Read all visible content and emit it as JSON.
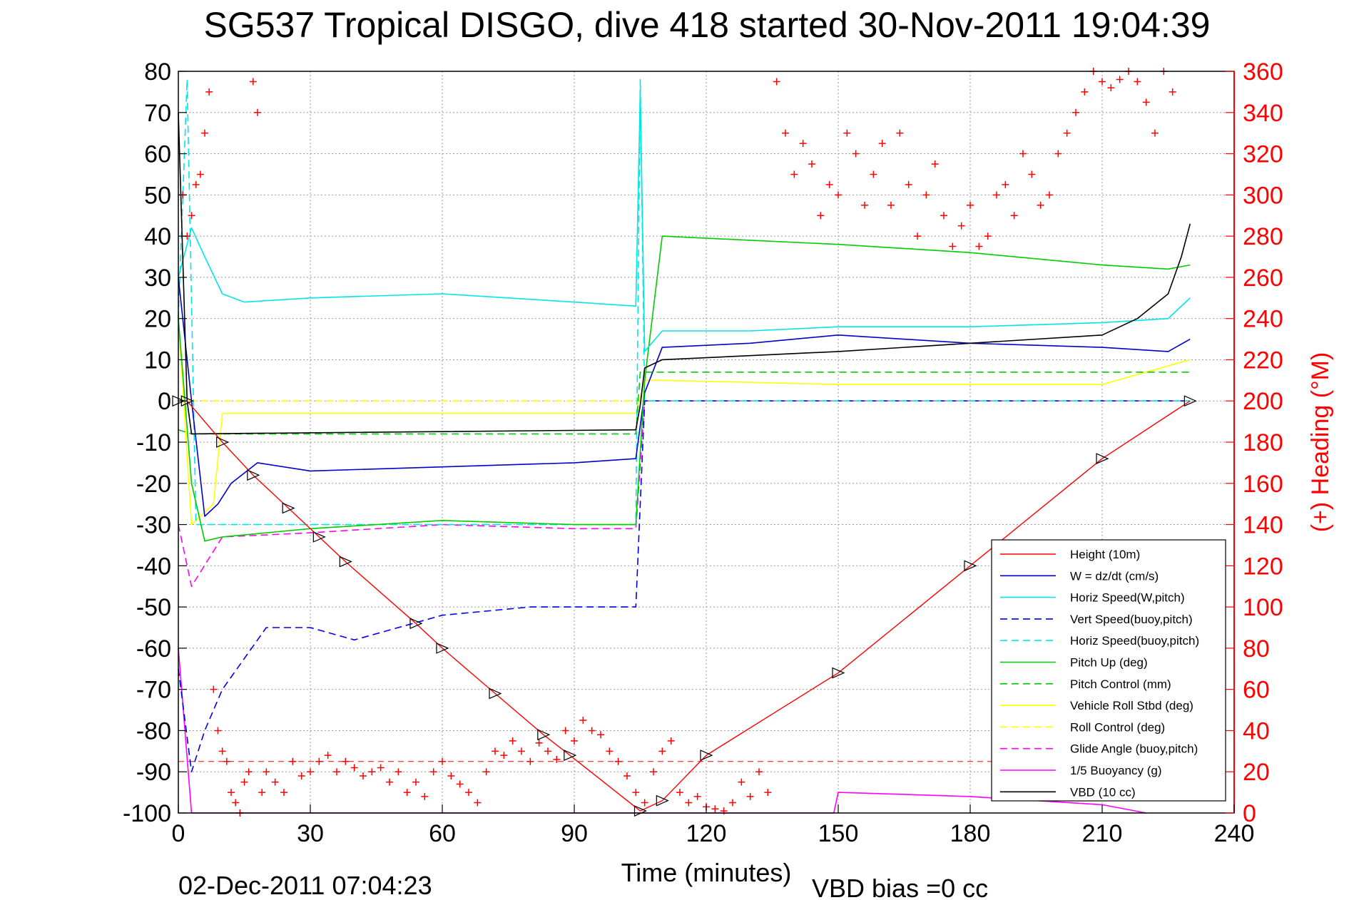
{
  "chart_data": {
    "type": "line",
    "title": "SG537 Tropical DISGO, dive 418 started 30-Nov-2011 19:04:39",
    "xlabel": "Time (minutes)",
    "ylabel_right": "(+) Heading (°M)",
    "footer_left": "02-Dec-2011 07:04:23",
    "footer_right": "VBD bias =0 cc",
    "xlim": [
      0,
      240
    ],
    "ylim": [
      -100,
      80
    ],
    "ylim_right": [
      0,
      360
    ],
    "xticks": [
      0,
      30,
      60,
      90,
      120,
      150,
      180,
      210,
      240
    ],
    "yticks": [
      80,
      70,
      60,
      50,
      40,
      30,
      20,
      10,
      0,
      -10,
      -20,
      -30,
      -40,
      -50,
      -60,
      -70,
      -80,
      -90,
      -100
    ],
    "yticks_right": [
      360,
      340,
      320,
      300,
      280,
      260,
      240,
      220,
      200,
      180,
      160,
      140,
      120,
      100,
      80,
      60,
      40,
      20,
      0
    ],
    "grid": true,
    "legend_position": "bottom-right",
    "series": [
      {
        "name": "Height (10m)",
        "color": "#ff0000",
        "style": "solid",
        "x": [
          0,
          2,
          10,
          17,
          25,
          32,
          38,
          54,
          60,
          72,
          83,
          89,
          105,
          110,
          120,
          150,
          180,
          210,
          230
        ],
        "y": [
          0,
          0,
          -10,
          -18,
          -26,
          -33,
          -39,
          -54,
          -60,
          -71,
          -81,
          -86,
          -99.5,
          -97,
          -86,
          -66,
          -40,
          -14,
          0
        ]
      },
      {
        "name": "W = dz/dt (cm/s)",
        "color": "#0000cc",
        "style": "solid",
        "x": [
          0,
          3,
          6,
          9,
          12,
          18,
          30,
          60,
          90,
          104,
          106,
          110,
          130,
          150,
          180,
          210,
          225,
          230
        ],
        "y": [
          30,
          0,
          -28,
          -25,
          -20,
          -15,
          -17,
          -16,
          -15,
          -14,
          2,
          13,
          14,
          16,
          14,
          13,
          12,
          15
        ]
      },
      {
        "name": "Horiz Speed(W,pitch)",
        "color": "#00e5e5",
        "style": "solid",
        "x": [
          0,
          3,
          6,
          10,
          15,
          30,
          60,
          90,
          104,
          105,
          106,
          110,
          130,
          150,
          180,
          210,
          225,
          230
        ],
        "y": [
          30,
          42,
          35,
          26,
          24,
          25,
          26,
          24,
          23,
          75,
          12,
          17,
          17,
          18,
          18,
          19,
          20,
          25
        ]
      },
      {
        "name": "Vert Speed(buoy,pitch)",
        "color": "#0000ee",
        "style": "dashed",
        "x": [
          0,
          3,
          6,
          10,
          20,
          30,
          40,
          60,
          80,
          90,
          104,
          106,
          110,
          150,
          180,
          230
        ],
        "y": [
          -65,
          -90,
          -80,
          -70,
          -55,
          -55,
          -58,
          -52,
          -50,
          -50,
          -50,
          0,
          0,
          0,
          0,
          0
        ]
      },
      {
        "name": "Horiz Speed(buoy,pitch)",
        "color": "#00e5e5",
        "style": "dashed",
        "x": [
          0,
          2,
          4,
          104,
          105,
          106,
          230
        ],
        "y": [
          20,
          78,
          -30,
          -30,
          78,
          0,
          0
        ]
      },
      {
        "name": "Pitch Up (deg)",
        "color": "#00cc00",
        "style": "solid",
        "x": [
          0,
          3,
          6,
          10,
          30,
          60,
          90,
          104,
          106,
          110,
          130,
          150,
          180,
          210,
          225,
          230
        ],
        "y": [
          20,
          -20,
          -34,
          -33,
          -31,
          -29,
          -30,
          -30,
          5,
          40,
          39,
          38,
          36,
          33,
          32,
          33
        ]
      },
      {
        "name": "Pitch Control (mm)",
        "color": "#00cc00",
        "style": "dashed",
        "x": [
          0,
          3,
          104,
          105,
          230
        ],
        "y": [
          -7,
          -8,
          -8,
          7,
          7
        ]
      },
      {
        "name": "Vehicle Roll Stbd (deg)",
        "color": "#ffff00",
        "style": "solid",
        "x": [
          0,
          3,
          8,
          10,
          30,
          60,
          90,
          104,
          106,
          110,
          150,
          180,
          210,
          230
        ],
        "y": [
          20,
          -30,
          -25,
          -3,
          -3,
          -3,
          -3,
          -3,
          5,
          5,
          4,
          4,
          4,
          10
        ]
      },
      {
        "name": "Roll Control (deg)",
        "color": "#ffff00",
        "style": "dashed",
        "x": [
          0,
          104,
          230
        ],
        "y": [
          0,
          0,
          0
        ]
      },
      {
        "name": "Glide Angle (buoy,pitch)",
        "color": "#ff00ff",
        "style": "dashed",
        "x": [
          0,
          3,
          10,
          30,
          60,
          90,
          104,
          106,
          230
        ],
        "y": [
          -30,
          -45,
          -33,
          -32,
          -30,
          -31,
          -31,
          0,
          0
        ]
      },
      {
        "name": "1/5 Buoyancy (g)",
        "color": "#ff00ff",
        "style": "solid",
        "x": [
          0,
          3,
          120,
          140,
          149,
          150,
          180,
          210,
          220
        ],
        "y": [
          -60,
          -100,
          -100,
          -100,
          -100,
          -95,
          -96,
          -98,
          -100
        ]
      },
      {
        "name": "VBD (10 cc)",
        "color": "#000000",
        "style": "solid",
        "x": [
          0,
          2,
          3,
          104,
          105,
          106,
          110,
          150,
          180,
          210,
          218,
          225,
          228,
          230
        ],
        "y": [
          70,
          0,
          -8,
          -7,
          -1,
          8,
          10,
          12,
          14,
          16,
          20,
          26,
          35,
          43
        ]
      }
    ],
    "heading_points": {
      "name": "Heading",
      "color": "#ff0000",
      "marker": "+",
      "axis": "right",
      "x": [
        1,
        2,
        3,
        4,
        5,
        6,
        7,
        8,
        9,
        10,
        11,
        12,
        13,
        14,
        15,
        16,
        17,
        18,
        19,
        20,
        22,
        24,
        26,
        28,
        30,
        32,
        34,
        36,
        38,
        40,
        42,
        44,
        46,
        48,
        50,
        52,
        54,
        56,
        58,
        60,
        62,
        64,
        66,
        68,
        70,
        72,
        74,
        76,
        78,
        80,
        82,
        84,
        86,
        88,
        90,
        92,
        94,
        96,
        98,
        100,
        102,
        104,
        106,
        108,
        110,
        112,
        114,
        116,
        118,
        120,
        122,
        124,
        126,
        128,
        130,
        132,
        134,
        136,
        138,
        140,
        142,
        144,
        146,
        148,
        150,
        152,
        154,
        156,
        158,
        160,
        162,
        164,
        166,
        168,
        170,
        172,
        174,
        176,
        178,
        180,
        182,
        184,
        186,
        188,
        190,
        192,
        194,
        196,
        198,
        200,
        202,
        204,
        206,
        208,
        210,
        212,
        214,
        216,
        218,
        220,
        222,
        224,
        226
      ],
      "y": [
        300,
        280,
        290,
        305,
        310,
        330,
        350,
        60,
        40,
        30,
        25,
        10,
        5,
        0,
        15,
        20,
        355,
        340,
        10,
        20,
        15,
        10,
        25,
        18,
        20,
        25,
        28,
        20,
        25,
        22,
        18,
        20,
        22,
        15,
        20,
        10,
        15,
        8,
        20,
        25,
        18,
        14,
        10,
        5,
        20,
        30,
        28,
        35,
        30,
        25,
        34,
        30,
        26,
        40,
        35,
        45,
        40,
        38,
        30,
        25,
        18,
        10,
        5,
        20,
        30,
        35,
        10,
        5,
        8,
        3,
        2,
        1,
        5,
        15,
        8,
        20,
        10,
        355,
        330,
        310,
        325,
        315,
        290,
        305,
        300,
        330,
        320,
        295,
        310,
        325,
        295,
        330,
        305,
        280,
        300,
        315,
        290,
        275,
        285,
        295,
        275,
        280,
        300,
        305,
        290,
        320,
        310,
        295,
        300,
        320,
        330,
        340,
        350,
        360,
        355,
        352,
        356,
        360,
        355,
        345,
        330,
        360,
        350
      ]
    }
  }
}
